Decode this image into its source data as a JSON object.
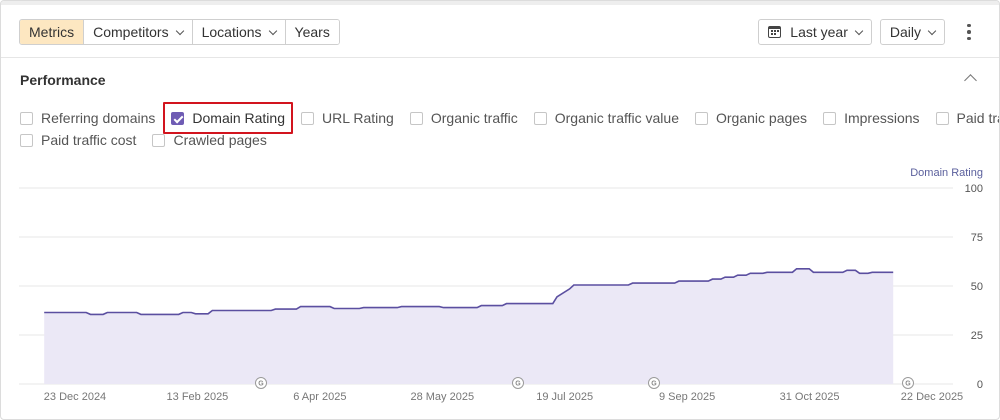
{
  "toolbar": {
    "tabs": [
      {
        "label": "Metrics",
        "active": true,
        "has_dropdown": false
      },
      {
        "label": "Competitors",
        "active": false,
        "has_dropdown": true
      },
      {
        "label": "Locations",
        "active": false,
        "has_dropdown": true
      },
      {
        "label": "Years",
        "active": false,
        "has_dropdown": false
      }
    ],
    "date_range": {
      "label": "Last year",
      "icon": "calendar-icon"
    },
    "interval": {
      "label": "Daily"
    },
    "menu_icon": "kebab-menu-icon"
  },
  "section": {
    "title": "Performance",
    "collapse_icon": "chevron-up-icon"
  },
  "metrics": [
    {
      "label": "Referring domains",
      "checked": false
    },
    {
      "label": "Domain Rating",
      "checked": true,
      "highlighted": true
    },
    {
      "label": "URL Rating",
      "checked": false
    },
    {
      "label": "Organic traffic",
      "checked": false
    },
    {
      "label": "Organic traffic value",
      "checked": false
    },
    {
      "label": "Organic pages",
      "checked": false
    },
    {
      "label": "Impressions",
      "checked": false
    },
    {
      "label": "Paid traffic",
      "checked": false
    },
    {
      "label": "Paid traffic cost",
      "checked": false
    },
    {
      "label": "Crawled pages",
      "checked": false
    }
  ],
  "colors": {
    "accent": "#6f5cb4",
    "line": "#5b4fa0",
    "area": "#ebe8f6",
    "active_tab": "#fde7c1",
    "highlight": "#d2141e"
  },
  "chart_data": {
    "type": "area",
    "ylabel": "Domain Rating",
    "ylim": [
      0,
      100
    ],
    "yticks": [
      0,
      25,
      50,
      75,
      100
    ],
    "xlim": [
      "2024-12-23",
      "2024-12-22"
    ],
    "x_tick_labels": [
      "23 Dec 2024",
      "13 Feb 2025",
      "6 Apr 2025",
      "28 May 2025",
      "19 Jul 2025",
      "9 Sep 2025",
      "31 Oct 2025",
      "22 Dec 2025"
    ],
    "x_start_label": "23 Dec 2024",
    "x_end_label": "22 Dec 2025",
    "grid": true,
    "annotation_marker": "G",
    "annotation_positions": [
      0.25,
      0.52,
      0.66,
      0.94
    ],
    "series": [
      {
        "values": [
          [
            0.03,
            36.5
          ],
          [
            0.08,
            36.5
          ],
          [
            0.085,
            35.5
          ],
          [
            0.1,
            35.5
          ],
          [
            0.105,
            36.5
          ],
          [
            0.14,
            36.5
          ],
          [
            0.145,
            35.5
          ],
          [
            0.19,
            35.5
          ],
          [
            0.195,
            36.5
          ],
          [
            0.205,
            36.5
          ],
          [
            0.21,
            35.8
          ],
          [
            0.225,
            35.8
          ],
          [
            0.23,
            37.5
          ],
          [
            0.3,
            37.5
          ],
          [
            0.305,
            38.2
          ],
          [
            0.33,
            38.2
          ],
          [
            0.335,
            39.5
          ],
          [
            0.37,
            39.5
          ],
          [
            0.375,
            38.5
          ],
          [
            0.405,
            38.5
          ],
          [
            0.41,
            39.0
          ],
          [
            0.45,
            39.0
          ],
          [
            0.455,
            39.5
          ],
          [
            0.5,
            39.5
          ],
          [
            0.505,
            39.0
          ],
          [
            0.545,
            39.0
          ],
          [
            0.55,
            40.0
          ],
          [
            0.575,
            40.0
          ],
          [
            0.58,
            41.0
          ],
          [
            0.635,
            41.0
          ],
          [
            0.64,
            44.5
          ],
          [
            0.655,
            48.5
          ],
          [
            0.66,
            50.5
          ],
          [
            0.725,
            50.5
          ],
          [
            0.73,
            51.5
          ],
          [
            0.78,
            51.5
          ],
          [
            0.785,
            52.5
          ],
          [
            0.82,
            52.5
          ],
          [
            0.825,
            53.5
          ],
          [
            0.835,
            53.5
          ],
          [
            0.84,
            54.5
          ],
          [
            0.85,
            54.5
          ],
          [
            0.855,
            55.5
          ],
          [
            0.865,
            55.5
          ],
          [
            0.87,
            56.5
          ],
          [
            0.885,
            56.5
          ],
          [
            0.89,
            57.0
          ],
          [
            0.92,
            57.0
          ],
          [
            0.925,
            58.8
          ],
          [
            0.94,
            58.8
          ],
          [
            0.945,
            57.0
          ],
          [
            0.98,
            57.0
          ],
          [
            0.985,
            58.0
          ],
          [
            0.995,
            58.0
          ],
          [
            1.0,
            56.5
          ],
          [
            1.01,
            56.5
          ],
          [
            1.015,
            57.0
          ],
          [
            1.04,
            57.0
          ]
        ]
      }
    ]
  }
}
